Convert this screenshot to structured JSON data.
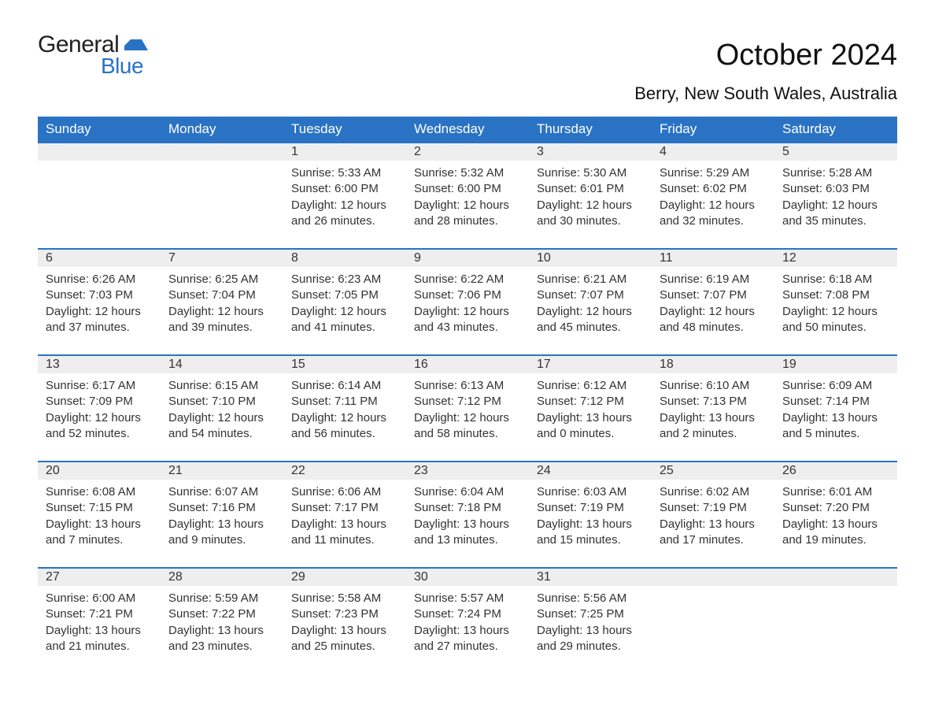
{
  "brand": {
    "word1": "General",
    "word2": "Blue",
    "flag_color": "#2a73c4",
    "text_color_1": "#222222",
    "text_color_2": "#2a73c4"
  },
  "title": "October 2024",
  "subtitle": "Berry, New South Wales, Australia",
  "colors": {
    "header_bg": "#2a73c4",
    "header_fg": "#ffffff",
    "daynum_bg": "#eeeeee",
    "rule": "#2a73c4",
    "body_text": "#333333",
    "page_bg": "#ffffff"
  },
  "fonts": {
    "title_size": 38,
    "subtitle_size": 22,
    "header_size": 17,
    "daynum_size": 16,
    "body_size": 15
  },
  "weekdays": [
    "Sunday",
    "Monday",
    "Tuesday",
    "Wednesday",
    "Thursday",
    "Friday",
    "Saturday"
  ],
  "weeks": [
    [
      null,
      null,
      {
        "day": "1",
        "sunrise": "Sunrise: 5:33 AM",
        "sunset": "Sunset: 6:00 PM",
        "dl1": "Daylight: 12 hours",
        "dl2": "and 26 minutes."
      },
      {
        "day": "2",
        "sunrise": "Sunrise: 5:32 AM",
        "sunset": "Sunset: 6:00 PM",
        "dl1": "Daylight: 12 hours",
        "dl2": "and 28 minutes."
      },
      {
        "day": "3",
        "sunrise": "Sunrise: 5:30 AM",
        "sunset": "Sunset: 6:01 PM",
        "dl1": "Daylight: 12 hours",
        "dl2": "and 30 minutes."
      },
      {
        "day": "4",
        "sunrise": "Sunrise: 5:29 AM",
        "sunset": "Sunset: 6:02 PM",
        "dl1": "Daylight: 12 hours",
        "dl2": "and 32 minutes."
      },
      {
        "day": "5",
        "sunrise": "Sunrise: 5:28 AM",
        "sunset": "Sunset: 6:03 PM",
        "dl1": "Daylight: 12 hours",
        "dl2": "and 35 minutes."
      }
    ],
    [
      {
        "day": "6",
        "sunrise": "Sunrise: 6:26 AM",
        "sunset": "Sunset: 7:03 PM",
        "dl1": "Daylight: 12 hours",
        "dl2": "and 37 minutes."
      },
      {
        "day": "7",
        "sunrise": "Sunrise: 6:25 AM",
        "sunset": "Sunset: 7:04 PM",
        "dl1": "Daylight: 12 hours",
        "dl2": "and 39 minutes."
      },
      {
        "day": "8",
        "sunrise": "Sunrise: 6:23 AM",
        "sunset": "Sunset: 7:05 PM",
        "dl1": "Daylight: 12 hours",
        "dl2": "and 41 minutes."
      },
      {
        "day": "9",
        "sunrise": "Sunrise: 6:22 AM",
        "sunset": "Sunset: 7:06 PM",
        "dl1": "Daylight: 12 hours",
        "dl2": "and 43 minutes."
      },
      {
        "day": "10",
        "sunrise": "Sunrise: 6:21 AM",
        "sunset": "Sunset: 7:07 PM",
        "dl1": "Daylight: 12 hours",
        "dl2": "and 45 minutes."
      },
      {
        "day": "11",
        "sunrise": "Sunrise: 6:19 AM",
        "sunset": "Sunset: 7:07 PM",
        "dl1": "Daylight: 12 hours",
        "dl2": "and 48 minutes."
      },
      {
        "day": "12",
        "sunrise": "Sunrise: 6:18 AM",
        "sunset": "Sunset: 7:08 PM",
        "dl1": "Daylight: 12 hours",
        "dl2": "and 50 minutes."
      }
    ],
    [
      {
        "day": "13",
        "sunrise": "Sunrise: 6:17 AM",
        "sunset": "Sunset: 7:09 PM",
        "dl1": "Daylight: 12 hours",
        "dl2": "and 52 minutes."
      },
      {
        "day": "14",
        "sunrise": "Sunrise: 6:15 AM",
        "sunset": "Sunset: 7:10 PM",
        "dl1": "Daylight: 12 hours",
        "dl2": "and 54 minutes."
      },
      {
        "day": "15",
        "sunrise": "Sunrise: 6:14 AM",
        "sunset": "Sunset: 7:11 PM",
        "dl1": "Daylight: 12 hours",
        "dl2": "and 56 minutes."
      },
      {
        "day": "16",
        "sunrise": "Sunrise: 6:13 AM",
        "sunset": "Sunset: 7:12 PM",
        "dl1": "Daylight: 12 hours",
        "dl2": "and 58 minutes."
      },
      {
        "day": "17",
        "sunrise": "Sunrise: 6:12 AM",
        "sunset": "Sunset: 7:12 PM",
        "dl1": "Daylight: 13 hours",
        "dl2": "and 0 minutes."
      },
      {
        "day": "18",
        "sunrise": "Sunrise: 6:10 AM",
        "sunset": "Sunset: 7:13 PM",
        "dl1": "Daylight: 13 hours",
        "dl2": "and 2 minutes."
      },
      {
        "day": "19",
        "sunrise": "Sunrise: 6:09 AM",
        "sunset": "Sunset: 7:14 PM",
        "dl1": "Daylight: 13 hours",
        "dl2": "and 5 minutes."
      }
    ],
    [
      {
        "day": "20",
        "sunrise": "Sunrise: 6:08 AM",
        "sunset": "Sunset: 7:15 PM",
        "dl1": "Daylight: 13 hours",
        "dl2": "and 7 minutes."
      },
      {
        "day": "21",
        "sunrise": "Sunrise: 6:07 AM",
        "sunset": "Sunset: 7:16 PM",
        "dl1": "Daylight: 13 hours",
        "dl2": "and 9 minutes."
      },
      {
        "day": "22",
        "sunrise": "Sunrise: 6:06 AM",
        "sunset": "Sunset: 7:17 PM",
        "dl1": "Daylight: 13 hours",
        "dl2": "and 11 minutes."
      },
      {
        "day": "23",
        "sunrise": "Sunrise: 6:04 AM",
        "sunset": "Sunset: 7:18 PM",
        "dl1": "Daylight: 13 hours",
        "dl2": "and 13 minutes."
      },
      {
        "day": "24",
        "sunrise": "Sunrise: 6:03 AM",
        "sunset": "Sunset: 7:19 PM",
        "dl1": "Daylight: 13 hours",
        "dl2": "and 15 minutes."
      },
      {
        "day": "25",
        "sunrise": "Sunrise: 6:02 AM",
        "sunset": "Sunset: 7:19 PM",
        "dl1": "Daylight: 13 hours",
        "dl2": "and 17 minutes."
      },
      {
        "day": "26",
        "sunrise": "Sunrise: 6:01 AM",
        "sunset": "Sunset: 7:20 PM",
        "dl1": "Daylight: 13 hours",
        "dl2": "and 19 minutes."
      }
    ],
    [
      {
        "day": "27",
        "sunrise": "Sunrise: 6:00 AM",
        "sunset": "Sunset: 7:21 PM",
        "dl1": "Daylight: 13 hours",
        "dl2": "and 21 minutes."
      },
      {
        "day": "28",
        "sunrise": "Sunrise: 5:59 AM",
        "sunset": "Sunset: 7:22 PM",
        "dl1": "Daylight: 13 hours",
        "dl2": "and 23 minutes."
      },
      {
        "day": "29",
        "sunrise": "Sunrise: 5:58 AM",
        "sunset": "Sunset: 7:23 PM",
        "dl1": "Daylight: 13 hours",
        "dl2": "and 25 minutes."
      },
      {
        "day": "30",
        "sunrise": "Sunrise: 5:57 AM",
        "sunset": "Sunset: 7:24 PM",
        "dl1": "Daylight: 13 hours",
        "dl2": "and 27 minutes."
      },
      {
        "day": "31",
        "sunrise": "Sunrise: 5:56 AM",
        "sunset": "Sunset: 7:25 PM",
        "dl1": "Daylight: 13 hours",
        "dl2": "and 29 minutes."
      },
      null,
      null
    ]
  ]
}
